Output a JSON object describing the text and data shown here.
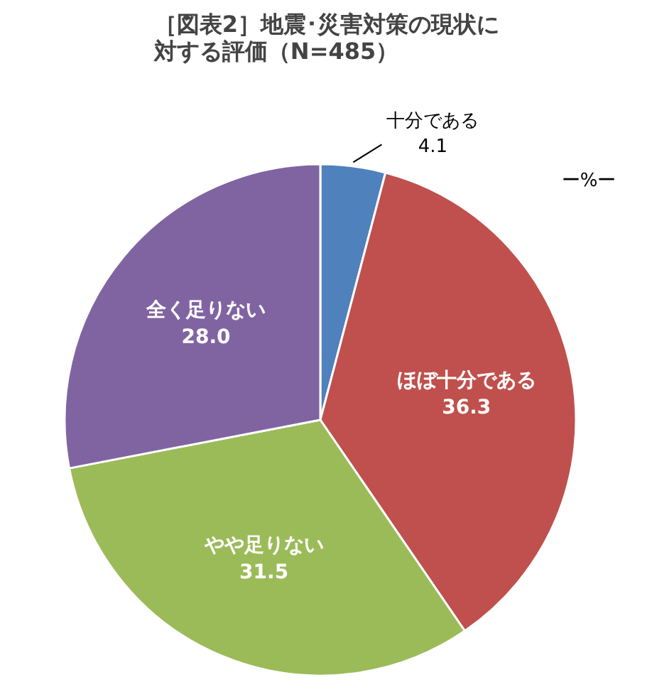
{
  "chart_data": {
    "type": "pie",
    "title": "［図表2］地震･災害対策の現状に対する評価（N=485）",
    "categories": [
      "十分である",
      "ほぼ十分である",
      "やや足りない",
      "全く足りない"
    ],
    "values": [
      4.1,
      36.3,
      31.5,
      28.0
    ],
    "value_labels": [
      "4.1",
      "36.3",
      "31.5",
      "28.0"
    ],
    "colors": [
      "#4f81bd",
      "#c0504d",
      "#9bbb59",
      "#8064a2"
    ],
    "annotations": [
      "ー%ー"
    ]
  }
}
